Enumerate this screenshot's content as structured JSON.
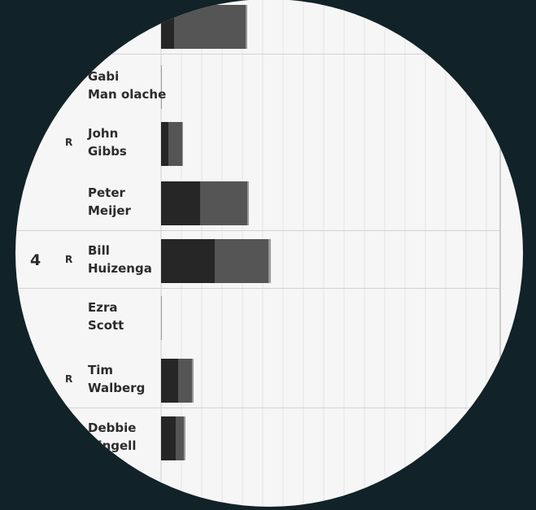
{
  "chart_data": {
    "type": "bar",
    "orientation": "horizontal",
    "stacked": true,
    "grid": true,
    "colors": {
      "background": "#f6f6f6",
      "primary": "#262626",
      "general": "#555555",
      "tail": "#9a9a9a",
      "grid": "#e4e4e4",
      "divider": "#d2d2d2"
    },
    "rows": [
      {
        "district": "",
        "party": "",
        "candidate": "",
        "primary": 16,
        "general": 88,
        "tail": 2
      },
      {
        "district": "",
        "party": "",
        "candidate": "Gabi Man olache",
        "primary": 0,
        "general": 0,
        "tail": 1
      },
      {
        "district": "",
        "party": "R",
        "candidate": "John Gibbs",
        "primary": 9,
        "general": 17,
        "tail": 1
      },
      {
        "district": "",
        "party": "",
        "candidate": "Peter Meijer",
        "primary": 48,
        "general": 58,
        "tail": 2
      },
      {
        "district": "4",
        "party": "R",
        "candidate": "Bill Huizenga",
        "primary": 66,
        "general": 66,
        "tail": 3
      },
      {
        "district": "",
        "party": "",
        "candidate": "Ezra Scott",
        "primary": 0,
        "general": 0,
        "tail": 1
      },
      {
        "district": "",
        "party": "R",
        "candidate": "Tim Walberg",
        "primary": 21,
        "general": 17,
        "tail": 2
      },
      {
        "district": "",
        "party": "",
        "candidate": "Debbie Dingell",
        "primary": 18,
        "general": 10,
        "tail": 2
      }
    ],
    "separators_after_rows": [
      0,
      3,
      4,
      6
    ],
    "xlim": [
      0,
      420
    ]
  }
}
